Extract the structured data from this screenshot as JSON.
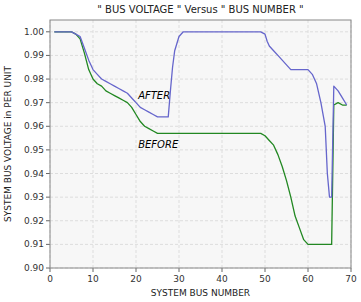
{
  "chart_data": {
    "type": "line",
    "title": "\" BUS VOLTAGE \"  Versus  \" BUS NUMBER \"",
    "xlabel": "SYSTEM BUS NUMBER",
    "ylabel": "SYSTEM BUS VOLTAGE in PER UNIT",
    "xlim": [
      0,
      70
    ],
    "ylim": [
      0.9,
      1.005
    ],
    "xticks": [
      0,
      10,
      20,
      30,
      40,
      50,
      60,
      70
    ],
    "yticks": [
      {
        "value": 0.9,
        "label": "0.90"
      },
      0.91,
      0.92,
      0.93,
      0.94,
      0.95,
      0.96,
      0.97,
      0.98,
      0.99,
      {
        "value": 1.0,
        "label": "1.00"
      }
    ],
    "grid": true,
    "series": [
      {
        "color": "#228822",
        "x": [
          1,
          2,
          3,
          4,
          5,
          6,
          7,
          8,
          9,
          10,
          11,
          12,
          13,
          14,
          15,
          16,
          17,
          18,
          19,
          20,
          21,
          22,
          23,
          24,
          25,
          26,
          27,
          28,
          29,
          30,
          31,
          32,
          33,
          34,
          35,
          36,
          37,
          38,
          39,
          40,
          41,
          42,
          43,
          44,
          45,
          46,
          47,
          48,
          49,
          50,
          51,
          52,
          53,
          54,
          55,
          56,
          57,
          58,
          59,
          60,
          61,
          62,
          63,
          64,
          65,
          65.5,
          66,
          67,
          68,
          69
        ],
        "values": [
          1.0,
          1.0,
          1.0,
          1.0,
          1.0,
          0.999,
          0.997,
          0.991,
          0.984,
          0.98,
          0.978,
          0.977,
          0.975,
          0.974,
          0.973,
          0.972,
          0.971,
          0.97,
          0.968,
          0.965,
          0.962,
          0.96,
          0.959,
          0.958,
          0.957,
          0.957,
          0.957,
          0.957,
          0.957,
          0.957,
          0.957,
          0.957,
          0.957,
          0.957,
          0.957,
          0.957,
          0.957,
          0.957,
          0.957,
          0.957,
          0.957,
          0.957,
          0.957,
          0.957,
          0.957,
          0.957,
          0.957,
          0.957,
          0.957,
          0.956,
          0.954,
          0.952,
          0.948,
          0.943,
          0.937,
          0.93,
          0.922,
          0.917,
          0.912,
          0.91,
          0.91,
          0.91,
          0.91,
          0.91,
          0.91,
          0.91,
          0.969,
          0.97,
          0.969,
          0.969
        ]
      },
      {
        "color": "#6666cc",
        "x": [
          1,
          2,
          3,
          4,
          5,
          6,
          7,
          8,
          9,
          10,
          11,
          12,
          13,
          14,
          15,
          16,
          17,
          18,
          19,
          20,
          21,
          22,
          23,
          24,
          25,
          26,
          27,
          27.5,
          28,
          28.5,
          29,
          30,
          31,
          32,
          33,
          34,
          35,
          36,
          37,
          38,
          39,
          40,
          41,
          42,
          43,
          44,
          45,
          46,
          47,
          48,
          49,
          50,
          50.5,
          51,
          52,
          53,
          54,
          55,
          56,
          57,
          58,
          59,
          60,
          61,
          62,
          63,
          64,
          64.5,
          65,
          65.5,
          66,
          67,
          68,
          69
        ],
        "values": [
          1.0,
          1.0,
          1.0,
          1.0,
          1.0,
          0.999,
          0.998,
          0.993,
          0.988,
          0.984,
          0.982,
          0.98,
          0.979,
          0.978,
          0.977,
          0.976,
          0.975,
          0.974,
          0.972,
          0.97,
          0.968,
          0.967,
          0.966,
          0.965,
          0.964,
          0.964,
          0.964,
          0.964,
          0.975,
          0.985,
          0.992,
          0.998,
          1.0,
          1.0,
          1.0,
          1.0,
          1.0,
          1.0,
          1.0,
          1.0,
          1.0,
          1.0,
          1.0,
          1.0,
          1.0,
          1.0,
          1.0,
          1.0,
          1.0,
          1.0,
          1.0,
          0.999,
          0.996,
          0.994,
          0.992,
          0.99,
          0.988,
          0.986,
          0.984,
          0.984,
          0.984,
          0.984,
          0.984,
          0.982,
          0.978,
          0.97,
          0.96,
          0.94,
          0.93,
          0.93,
          0.977,
          0.975,
          0.972,
          0.969
        ]
      }
    ],
    "annotations": [
      {
        "text": "AFTER",
        "x": 20.5,
        "y": 0.9715
      },
      {
        "text": "BEFORE",
        "x": 20.5,
        "y": 0.951
      }
    ]
  }
}
